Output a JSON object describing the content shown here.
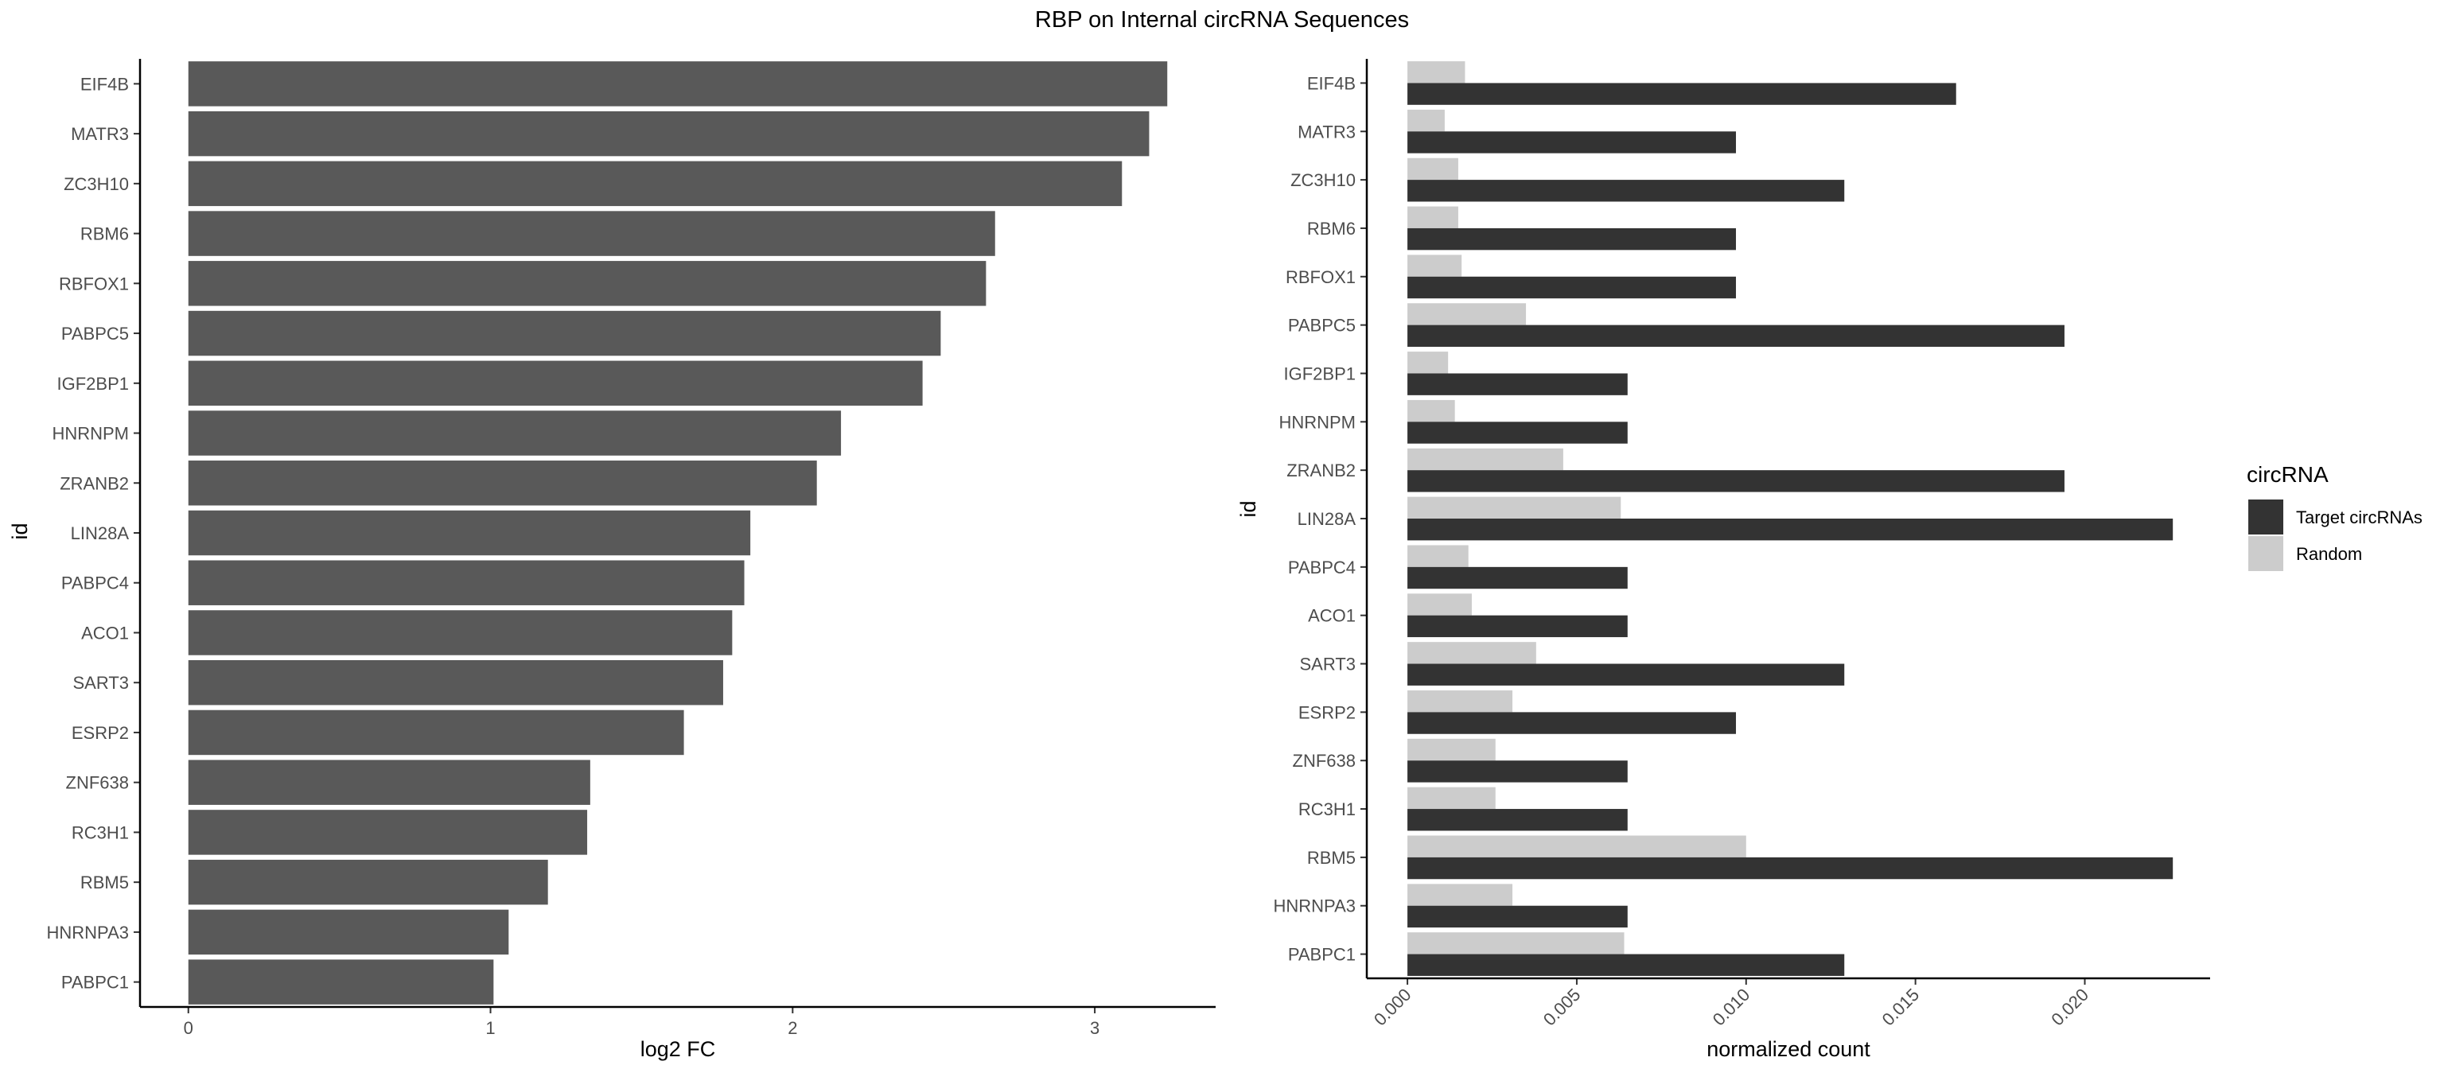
{
  "title": "RBP on Internal circRNA Sequences",
  "colors": {
    "bar": "#595959",
    "target": "#333333",
    "random": "#cccccc",
    "axis": "#000000",
    "tick_label": "#4d4d4d"
  },
  "chart_data": [
    {
      "type": "bar",
      "orientation": "horizontal",
      "xlabel": "log2 FC",
      "ylabel": "id",
      "xlim": [
        -0.16,
        3.4
      ],
      "xticks": [
        0,
        1,
        2,
        3
      ],
      "grid": false,
      "categories": [
        "EIF4B",
        "MATR3",
        "ZC3H10",
        "RBM6",
        "RBFOX1",
        "PABPC5",
        "IGF2BP1",
        "HNRNPM",
        "ZRANB2",
        "LIN28A",
        "PABPC4",
        "ACO1",
        "SART3",
        "ESRP2",
        "ZNF638",
        "RC3H1",
        "RBM5",
        "HNRNPA3",
        "PABPC1"
      ],
      "values": [
        3.24,
        3.18,
        3.09,
        2.67,
        2.64,
        2.49,
        2.43,
        2.16,
        2.08,
        1.86,
        1.84,
        1.8,
        1.77,
        1.64,
        1.33,
        1.32,
        1.19,
        1.06,
        1.01
      ]
    },
    {
      "type": "bar",
      "orientation": "horizontal",
      "xlabel": "normalized count",
      "ylabel": "id",
      "xlim": [
        -0.0012,
        0.0237
      ],
      "xticks": [
        0.0,
        0.005,
        0.01,
        0.015,
        0.02
      ],
      "xtick_labels": [
        "0.000",
        "0.005",
        "0.010",
        "0.015",
        "0.020"
      ],
      "grid": false,
      "legend": {
        "title": "circRNA",
        "placement": "right"
      },
      "categories": [
        "EIF4B",
        "MATR3",
        "ZC3H10",
        "RBM6",
        "RBFOX1",
        "PABPC5",
        "IGF2BP1",
        "HNRNPM",
        "ZRANB2",
        "LIN28A",
        "PABPC4",
        "ACO1",
        "SART3",
        "ESRP2",
        "ZNF638",
        "RC3H1",
        "RBM5",
        "HNRNPA3",
        "PABPC1"
      ],
      "series": [
        {
          "name": "Target circRNAs",
          "color": "#333333",
          "values": [
            0.0162,
            0.0097,
            0.0129,
            0.0097,
            0.0097,
            0.0194,
            0.0065,
            0.0065,
            0.0194,
            0.0226,
            0.0065,
            0.0065,
            0.0129,
            0.0097,
            0.0065,
            0.0065,
            0.0226,
            0.0065,
            0.0129
          ]
        },
        {
          "name": "Random",
          "color": "#cccccc",
          "values": [
            0.0017,
            0.0011,
            0.0015,
            0.0015,
            0.0016,
            0.0035,
            0.0012,
            0.0014,
            0.0046,
            0.0063,
            0.0018,
            0.0019,
            0.0038,
            0.0031,
            0.0026,
            0.0026,
            0.01,
            0.0031,
            0.0064
          ]
        }
      ]
    }
  ]
}
